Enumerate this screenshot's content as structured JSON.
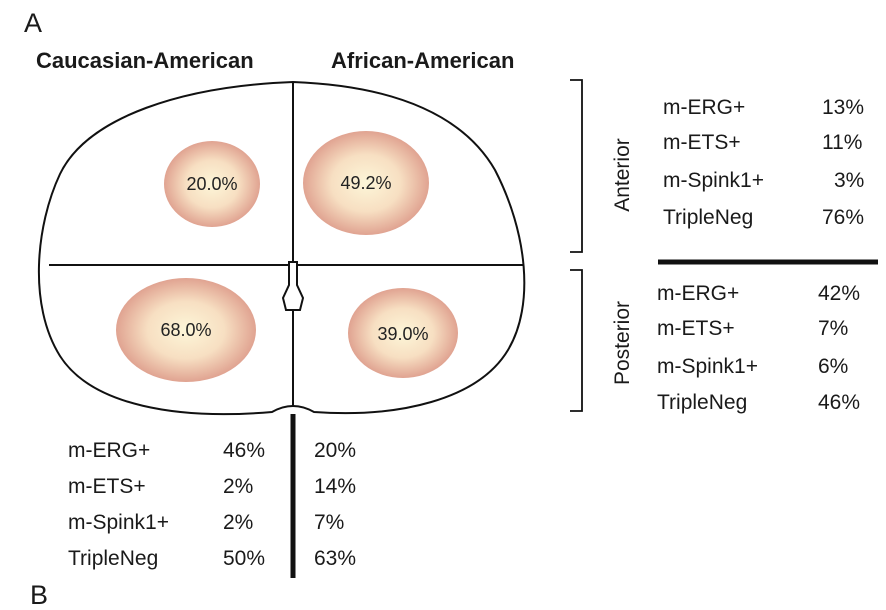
{
  "panel_labels": [
    "A",
    "B"
  ],
  "headers": {
    "left": "Caucasian-American",
    "right": "African-American"
  },
  "regions": {
    "anterior": "Anterior",
    "posterior": "Posterior"
  },
  "zone_percentages": {
    "anterior_left": "20.0%",
    "anterior_right": "49.2%",
    "posterior_left": "68.0%",
    "posterior_right": "39.0%"
  },
  "anterior_table": [
    {
      "label": "m-ERG+",
      "value": "13%"
    },
    {
      "label": "m-ETS+",
      "value": "11%"
    },
    {
      "label": "m-Spink1+",
      "value": "3%"
    },
    {
      "label": "TripleNeg",
      "value": "76%"
    }
  ],
  "posterior_table": [
    {
      "label": "m-ERG+",
      "value": "42%"
    },
    {
      "label": "m-ETS+",
      "value": "7%"
    },
    {
      "label": "m-Spink1+",
      "value": "6%"
    },
    {
      "label": "TripleNeg",
      "value": "46%"
    }
  ],
  "ethnicity_table": [
    {
      "label": "m-ERG+",
      "caucasian": "46%",
      "african": "20%"
    },
    {
      "label": "m-ETS+",
      "caucasian": "2%",
      "african": "14%"
    },
    {
      "label": "m-Spink1+",
      "caucasian": "2%",
      "african": "7%"
    },
    {
      "label": "TripleNeg",
      "caucasian": "50%",
      "african": "63%"
    }
  ],
  "colors": {
    "circle_center": "#fdf6d8",
    "circle_edge": "#e0a391",
    "line": "#111111"
  }
}
